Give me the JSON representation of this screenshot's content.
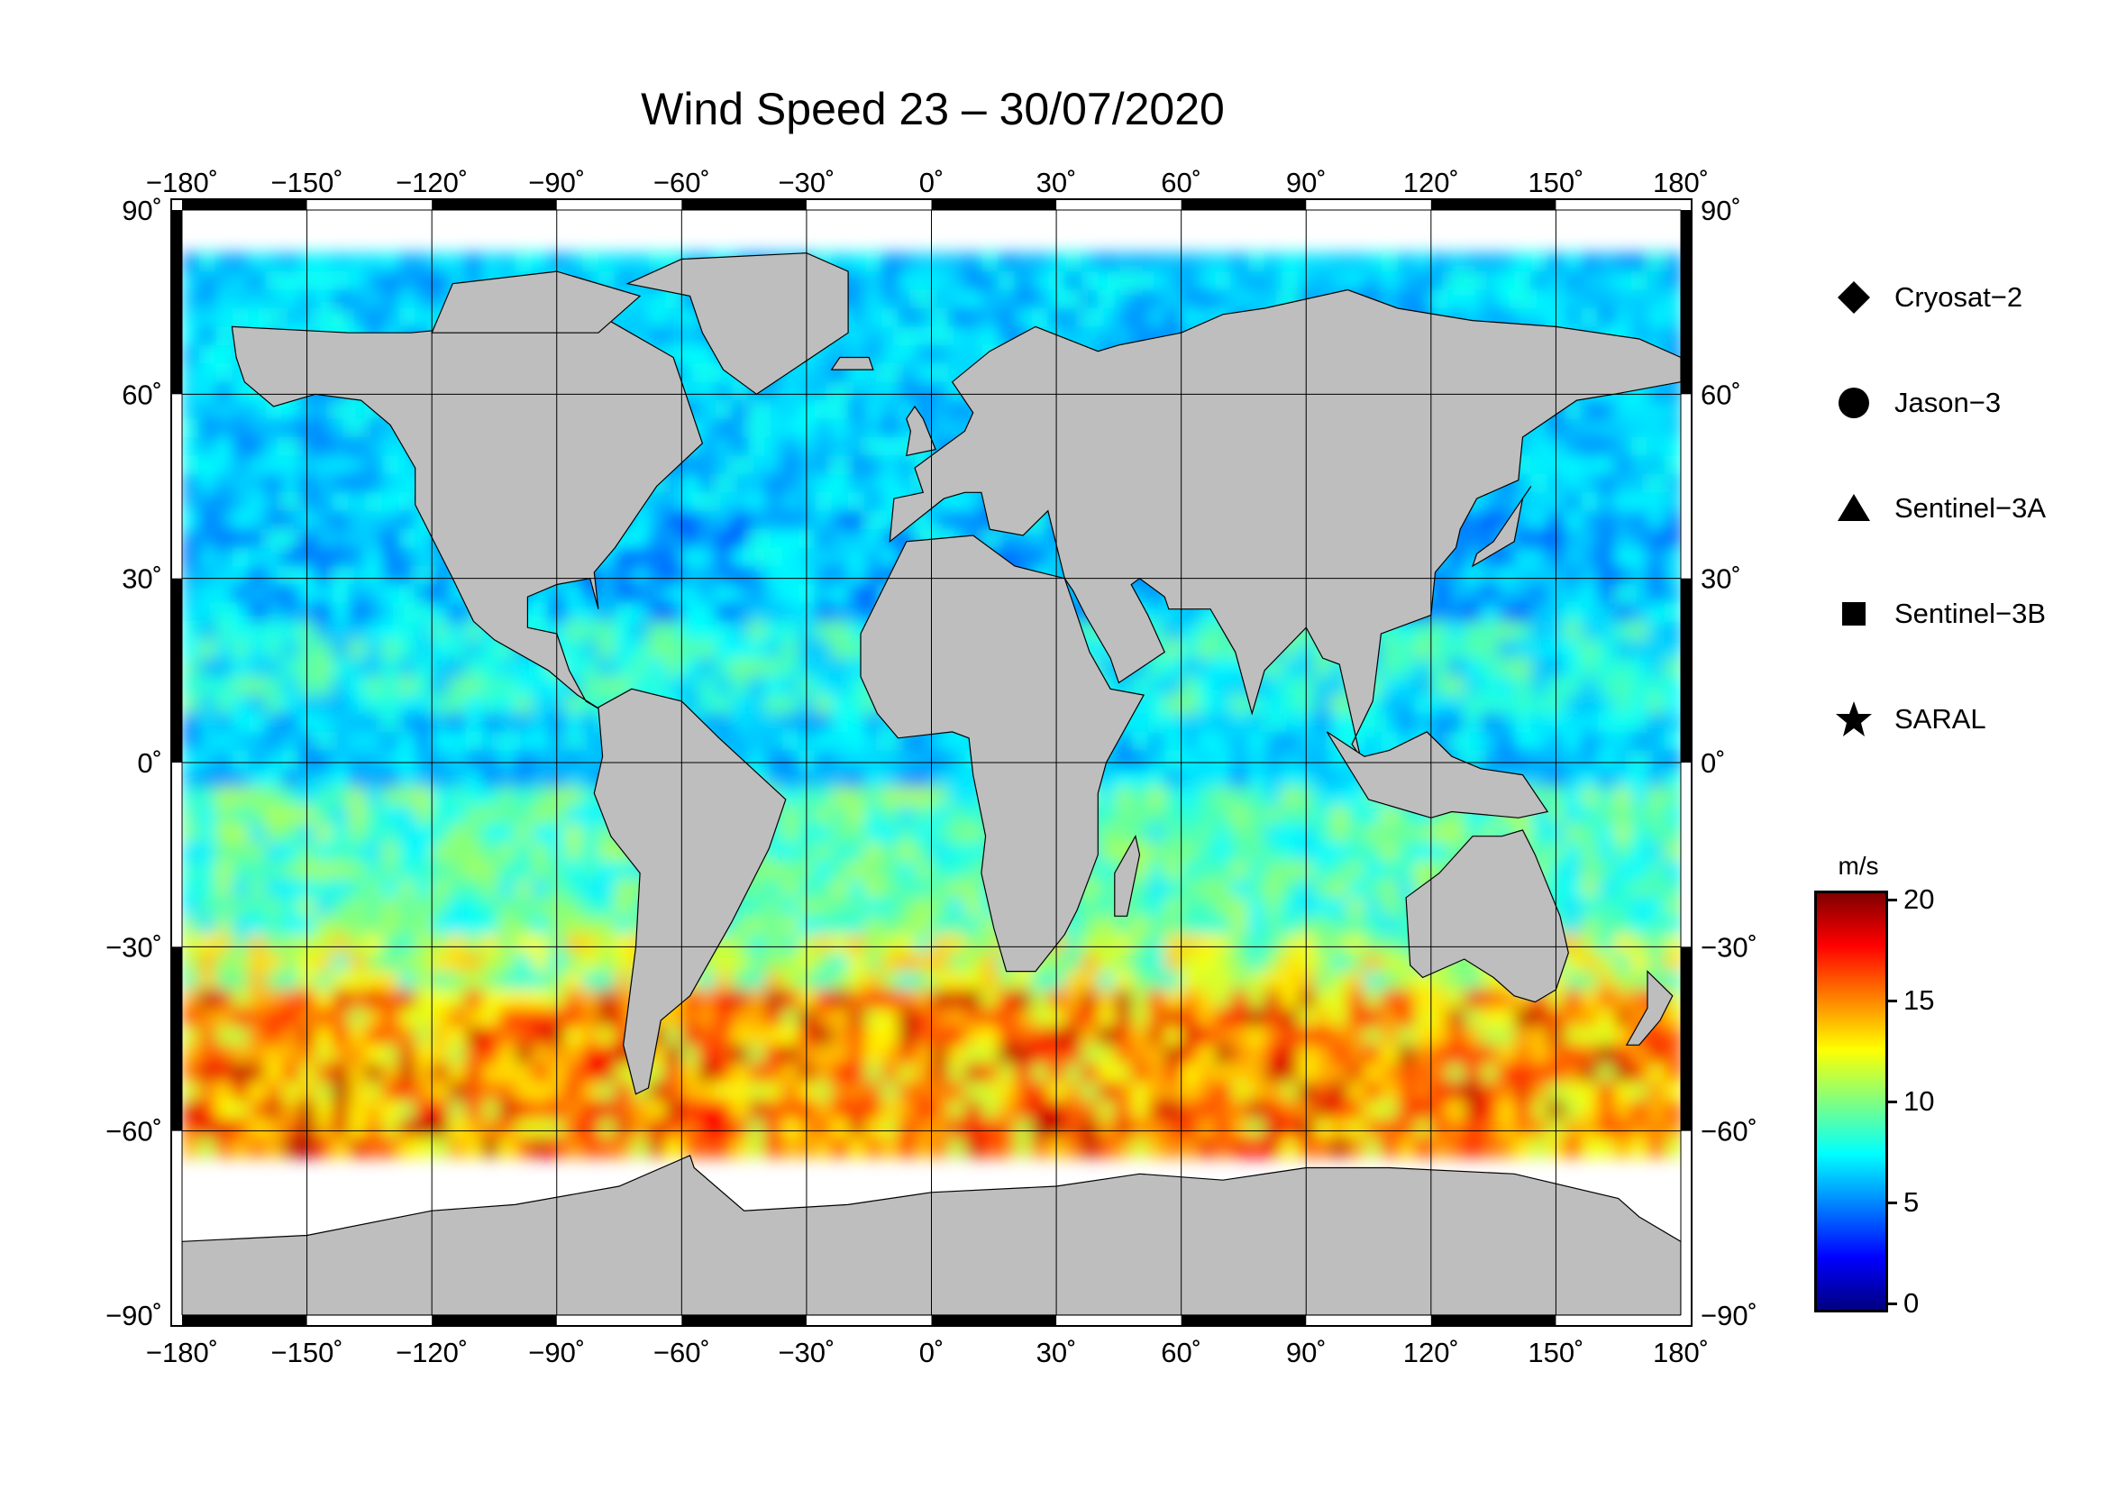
{
  "title": "Wind Speed 23 – 30/07/2020",
  "map": {
    "projection": "equirectangular",
    "lon_range": [
      -180,
      180
    ],
    "lat_range": [
      -90,
      90
    ],
    "lon_ticks": [
      "−180˚",
      "−150˚",
      "−120˚",
      "−90˚",
      "−60˚",
      "−30˚",
      "0˚",
      "30˚",
      "60˚",
      "90˚",
      "120˚",
      "150˚",
      "180˚"
    ],
    "lat_ticks": [
      "90˚",
      "60˚",
      "30˚",
      "0˚",
      "−30˚",
      "−60˚",
      "−90˚"
    ],
    "land_color": "#bebebe",
    "no_data_color": "#ffffff",
    "grid": true
  },
  "legend": {
    "items": [
      {
        "symbol": "diamond-icon",
        "label": "Cryosat−2"
      },
      {
        "symbol": "circle-icon",
        "label": "Jason−3"
      },
      {
        "symbol": "triangle-icon",
        "label": "Sentinel−3A"
      },
      {
        "symbol": "square-icon",
        "label": "Sentinel−3B"
      },
      {
        "symbol": "star-icon",
        "label": "SARAL"
      }
    ]
  },
  "colorbar": {
    "unit": "m/s",
    "min": 0,
    "max": 20,
    "ticks": [
      "20",
      "15",
      "10",
      "5",
      "0"
    ],
    "colormap": "jet",
    "colors": [
      "#000080",
      "#0000ff",
      "#0080ff",
      "#00ffff",
      "#80ff80",
      "#ffff00",
      "#ff8000",
      "#ff0000",
      "#800000"
    ]
  }
}
